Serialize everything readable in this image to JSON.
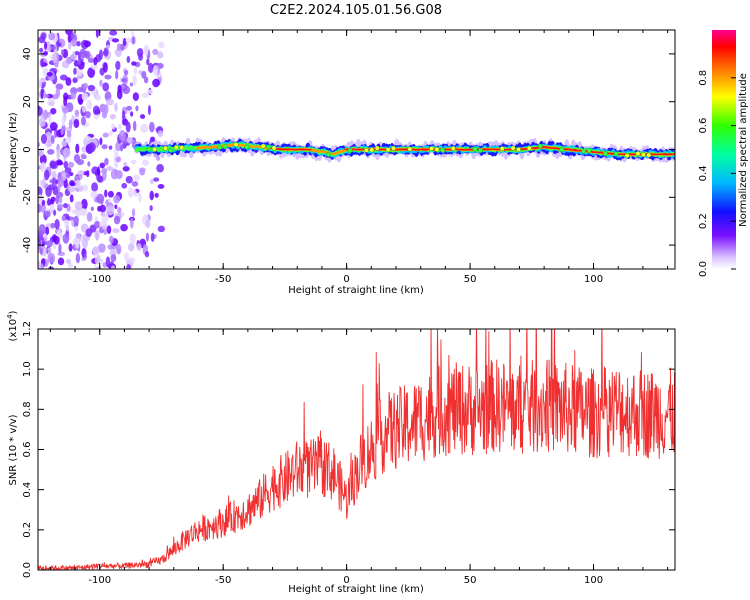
{
  "figure_title": "C2E2.2024.105.01.56.G08",
  "chart_data": [
    {
      "type": "heatmap",
      "xlabel": "Height of straight line (km)",
      "ylabel": "Frequency (Hz)",
      "xlim": [
        -125,
        133
      ],
      "ylim": [
        -50,
        50
      ],
      "xticks": [
        -100,
        -50,
        0,
        50,
        100
      ],
      "yticks": [
        -40,
        -20,
        0,
        20,
        40
      ],
      "x_tick_labels": [
        "-100",
        "-50",
        "0",
        "50",
        "100"
      ],
      "y_tick_labels": [
        "-40",
        "-20",
        "0",
        "20",
        "40"
      ],
      "colorbar": {
        "label": "Normalized spectral amplitude",
        "range": [
          0,
          1
        ],
        "ticks": [
          0.0,
          0.2,
          0.4,
          0.6,
          0.8
        ],
        "tick_labels": [
          "0.0",
          "0.2",
          "0.4",
          "0.6",
          "0.8"
        ],
        "colors": [
          "#ffffff",
          "#c8a0ff",
          "#6a00ff",
          "#0000ff",
          "#00d0ff",
          "#00ff60",
          "#ffff00",
          "#ff7000",
          "#ff0000",
          "#ff00a0"
        ]
      },
      "ridge": {
        "x": [
          -85,
          -75,
          -65,
          -55,
          -45,
          -35,
          -25,
          -15,
          -10,
          -5,
          0,
          10,
          30,
          50,
          70,
          80,
          90,
          100,
          110,
          120,
          133
        ],
        "y": [
          0,
          0,
          0.5,
          1,
          2,
          1,
          0,
          0,
          -1,
          -2,
          0,
          0,
          0,
          0,
          0,
          1,
          0,
          -1,
          -2,
          -2,
          -2
        ]
      },
      "noise_region": {
        "x_from": -125,
        "x_to": -75
      },
      "grid": false
    },
    {
      "type": "line",
      "xlabel": "Height of straight line (km)",
      "ylabel": "SNR (10 * v/v)",
      "y_exponent_label": "(x10",
      "y_exponent_power": "4",
      "y_exponent_close": ")",
      "xlim": [
        -125,
        133
      ],
      "ylim": [
        0,
        1.2
      ],
      "xticks": [
        -100,
        -50,
        0,
        50,
        100
      ],
      "yticks": [
        0.0,
        0.2,
        0.4,
        0.6,
        0.8,
        1.0,
        1.2
      ],
      "x_tick_labels": [
        "-100",
        "-50",
        "0",
        "50",
        "100"
      ],
      "y_tick_labels": [
        "0.0",
        "0.2",
        "0.4",
        "0.6",
        "0.8",
        "1.0",
        "1.2"
      ],
      "color": "#f03030",
      "grid": false,
      "series": [
        {
          "x": [
            -125,
            -110,
            -100,
            -90,
            -80,
            -75,
            -70,
            -65,
            -60,
            -55,
            -50,
            -45,
            -40,
            -35,
            -30,
            -25,
            -20,
            -15,
            -10,
            -5,
            0,
            5,
            10,
            15,
            20,
            25,
            30,
            35,
            40,
            45,
            50,
            55,
            60,
            70,
            80,
            90,
            100,
            110,
            120,
            133
          ],
          "values": [
            0.01,
            0.01,
            0.02,
            0.02,
            0.03,
            0.05,
            0.1,
            0.16,
            0.2,
            0.22,
            0.24,
            0.27,
            0.3,
            0.35,
            0.42,
            0.45,
            0.5,
            0.5,
            0.52,
            0.48,
            0.35,
            0.52,
            0.6,
            0.68,
            0.7,
            0.72,
            0.75,
            0.78,
            0.8,
            0.8,
            0.8,
            0.8,
            0.82,
            0.8,
            0.82,
            0.8,
            0.78,
            0.8,
            0.78,
            0.78
          ]
        }
      ]
    }
  ]
}
